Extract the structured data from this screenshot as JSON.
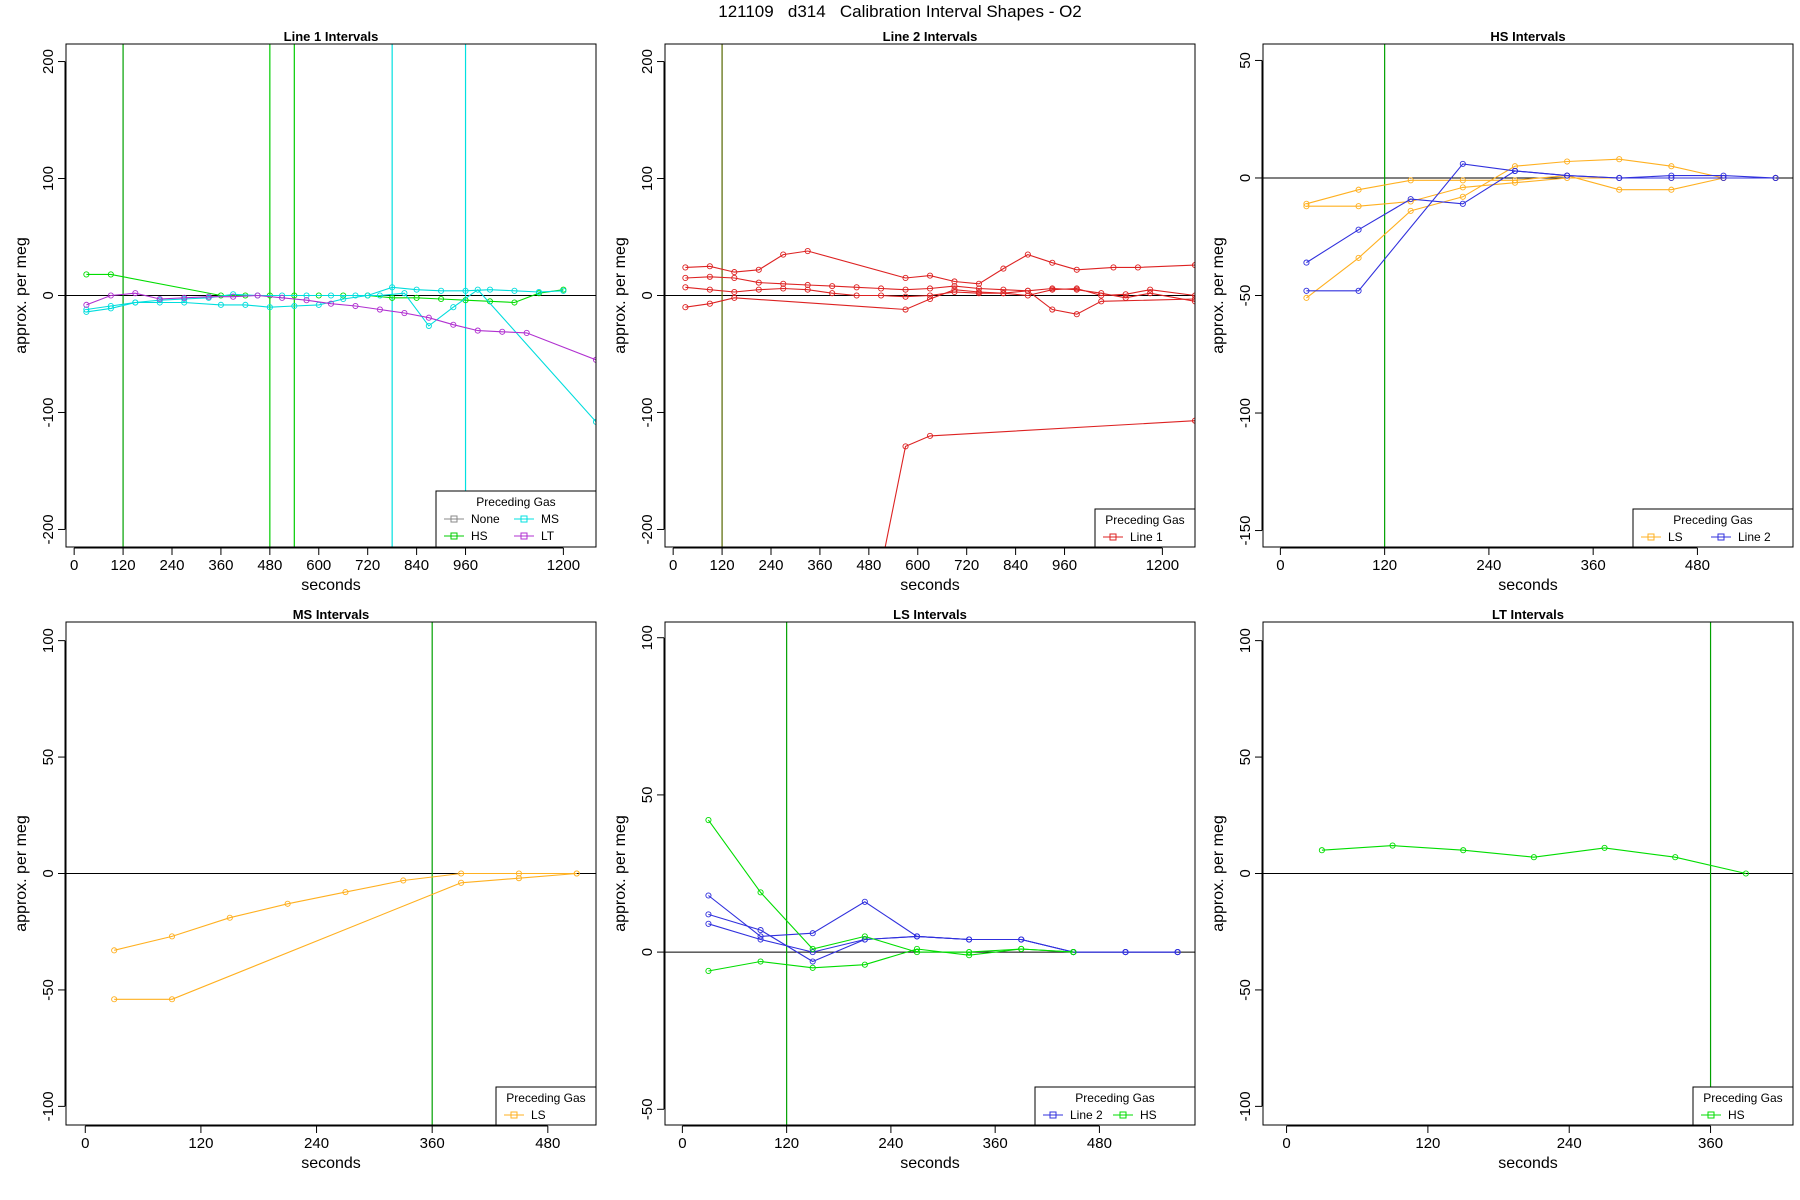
{
  "page": {
    "title": "121109   d314   Calibration Interval Shapes - O2"
  },
  "chart_data": [
    {
      "type": "line",
      "title": "Line 1 Intervals",
      "xlabel": "seconds",
      "ylabel": "approx. per meg",
      "xlim": [
        -20,
        1280
      ],
      "ylim": [
        -215,
        215
      ],
      "xticks": [
        0,
        120,
        240,
        360,
        480,
        600,
        720,
        840,
        960,
        1200
      ],
      "yticks": [
        -200,
        -100,
        0,
        100,
        200
      ],
      "hline": 0,
      "vlines": [
        {
          "x": 120,
          "color": "#00a000"
        },
        {
          "x": 480,
          "color": "#00cc00"
        },
        {
          "x": 540,
          "color": "#00cc00"
        },
        {
          "x": 780,
          "color": "#00e0e0"
        },
        {
          "x": 960,
          "color": "#00e0e0"
        }
      ],
      "legend": {
        "title": "Preceding Gas",
        "position": "bottom-right",
        "entries": [
          {
            "label": "None",
            "color": "#888888"
          },
          {
            "label": "MS",
            "color": "#00e0e0"
          },
          {
            "label": "HS",
            "color": "#00cc00"
          },
          {
            "label": "LT",
            "color": "#b030d0"
          }
        ]
      },
      "series": [
        {
          "color": "#00dd00",
          "x": [
            30,
            90,
            360,
            420,
            480,
            540,
            600,
            660,
            720,
            780,
            840,
            900,
            960,
            1020,
            1080,
            1140,
            1200
          ],
          "values": [
            18,
            18,
            0,
            0,
            0,
            0,
            0,
            0,
            0,
            -2,
            -2,
            -3,
            -4,
            -5,
            -6,
            2,
            5
          ]
        },
        {
          "color": "#00dddd",
          "x": [
            30,
            90,
            150,
            210,
            270,
            360,
            420,
            480,
            540,
            600,
            660,
            720,
            780,
            840,
            900,
            960,
            1020,
            1080,
            1140,
            1200
          ],
          "values": [
            -12,
            -9,
            -6,
            -6,
            -6,
            -8,
            -8,
            -10,
            -9,
            -8,
            -3,
            0,
            7,
            5,
            4,
            4,
            5,
            4,
            3,
            4
          ]
        },
        {
          "color": "#00dddd",
          "x": [
            30,
            90,
            150,
            210,
            270,
            330,
            390,
            450,
            510,
            570,
            630,
            690,
            750,
            810,
            870,
            930,
            990,
            1280
          ],
          "values": [
            -14,
            -11,
            -6,
            -4,
            -3,
            -2,
            1,
            0,
            0,
            0,
            0,
            0,
            0,
            2,
            -26,
            -10,
            5,
            -108
          ]
        },
        {
          "color": "#b030d0",
          "x": [
            30,
            90,
            150,
            210,
            270,
            330,
            390,
            450,
            510,
            570,
            630,
            690,
            750,
            810,
            870,
            930,
            990,
            1050,
            1110,
            1280
          ],
          "values": [
            -8,
            0,
            2,
            -3,
            -2,
            -1,
            -1,
            0,
            -2,
            -4,
            -7,
            -9,
            -12,
            -15,
            -19,
            -25,
            -30,
            -31,
            -32,
            -55
          ]
        }
      ]
    },
    {
      "type": "line",
      "title": "Line 2 Intervals",
      "xlabel": "seconds",
      "ylabel": "approx. per meg",
      "xlim": [
        -20,
        1280
      ],
      "ylim": [
        -215,
        215
      ],
      "xticks": [
        0,
        120,
        240,
        360,
        480,
        600,
        720,
        840,
        960,
        1200
      ],
      "yticks": [
        -200,
        -100,
        0,
        100,
        200
      ],
      "hline": 0,
      "vlines": [
        {
          "x": 120,
          "color": "#556600"
        }
      ],
      "legend": {
        "title": "Preceding Gas",
        "position": "bottom-right",
        "entries": [
          {
            "label": "Line 1",
            "color": "#dd2222"
          }
        ]
      },
      "series": [
        {
          "color": "#dd2222",
          "x": [
            30,
            90,
            150,
            210,
            270,
            330,
            570,
            630,
            690,
            750,
            810,
            870,
            930,
            990,
            1080,
            1140,
            1280
          ],
          "values": [
            24,
            25,
            20,
            22,
            35,
            38,
            15,
            17,
            12,
            10,
            23,
            35,
            28,
            22,
            24,
            24,
            26
          ]
        },
        {
          "color": "#dd2222",
          "x": [
            30,
            90,
            150,
            210,
            270,
            330,
            390,
            450,
            510,
            570,
            630,
            690,
            750,
            810,
            870,
            930,
            990,
            1050,
            1110,
            1170,
            1280
          ],
          "values": [
            15,
            16,
            15,
            11,
            10,
            9,
            8,
            7,
            6,
            5,
            6,
            8,
            6,
            5,
            4,
            6,
            5,
            2,
            -2,
            2,
            -5
          ]
        },
        {
          "color": "#dd2222",
          "x": [
            30,
            90,
            150,
            210,
            270,
            330,
            390,
            450,
            510,
            570,
            630,
            690,
            750,
            810,
            870,
            930,
            990,
            1050,
            1110,
            1170,
            1280
          ],
          "values": [
            7,
            5,
            3,
            5,
            6,
            5,
            2,
            0,
            0,
            -1,
            0,
            3,
            2,
            2,
            0,
            5,
            6,
            0,
            1,
            5,
            0
          ]
        },
        {
          "color": "#dd2222",
          "x": [
            30,
            90,
            150,
            570,
            630,
            690,
            750,
            810,
            870,
            930,
            990,
            1050,
            1280
          ],
          "values": [
            -10,
            -7,
            -2,
            -12,
            -3,
            5,
            3,
            2,
            4,
            -12,
            -16,
            -5,
            -3
          ]
        },
        {
          "color": "#dd2222",
          "x": [
            520,
            570,
            630,
            1280
          ],
          "values": [
            -215,
            -129,
            -120,
            -107
          ]
        }
      ]
    },
    {
      "type": "line",
      "title": "HS Intervals",
      "xlabel": "seconds",
      "ylabel": "approx. per meg",
      "xlim": [
        -20,
        590
      ],
      "ylim": [
        -157,
        57
      ],
      "xticks": [
        0,
        120,
        240,
        360,
        480
      ],
      "yticks": [
        -150,
        -100,
        -50,
        0,
        50
      ],
      "hline": 0,
      "vlines": [
        {
          "x": 120,
          "color": "#00a000"
        }
      ],
      "legend": {
        "title": "Preceding Gas",
        "position": "bottom-right",
        "entries": [
          {
            "label": "LS",
            "color": "#ffb020"
          },
          {
            "label": "Line 2",
            "color": "#3030dd"
          }
        ]
      },
      "series": [
        {
          "color": "#ffb020",
          "x": [
            30,
            90,
            150,
            210,
            270,
            330,
            390,
            450,
            510,
            570
          ],
          "values": [
            -11,
            -5,
            -1,
            -1,
            -1,
            1,
            -5,
            -5,
            0,
            0
          ]
        },
        {
          "color": "#ffb020",
          "x": [
            30,
            90,
            150,
            210,
            270,
            330,
            390,
            450,
            510,
            570
          ],
          "values": [
            -12,
            -12,
            -10,
            -4,
            -2,
            0,
            0,
            0,
            0,
            0
          ]
        },
        {
          "color": "#ffb020",
          "x": [
            30,
            90,
            150,
            210,
            270,
            330,
            390,
            450,
            510,
            570
          ],
          "values": [
            -51,
            -34,
            -14,
            -8,
            5,
            7,
            8,
            5,
            0,
            0
          ]
        },
        {
          "color": "#3030dd",
          "x": [
            30,
            90,
            150,
            210,
            270,
            330,
            390,
            450,
            510,
            570
          ],
          "values": [
            -36,
            -22,
            -9,
            -11,
            3,
            1,
            0,
            1,
            1,
            0
          ]
        },
        {
          "color": "#3030dd",
          "x": [
            30,
            90,
            210,
            270,
            330,
            390,
            450,
            510,
            570
          ],
          "values": [
            -48,
            -48,
            6,
            3,
            1,
            0,
            0,
            0,
            0
          ]
        }
      ]
    },
    {
      "type": "line",
      "title": "MS Intervals",
      "xlabel": "seconds",
      "ylabel": "approx. per meg",
      "xlim": [
        -20,
        530
      ],
      "ylim": [
        -108,
        108
      ],
      "xticks": [
        0,
        120,
        240,
        360,
        480
      ],
      "yticks": [
        -100,
        -50,
        0,
        50,
        100
      ],
      "hline": 0,
      "vlines": [
        {
          "x": 360,
          "color": "#00a000"
        }
      ],
      "legend": {
        "title": "Preceding Gas",
        "position": "bottom-right",
        "entries": [
          {
            "label": "LS",
            "color": "#ffb020"
          }
        ]
      },
      "series": [
        {
          "color": "#ffb020",
          "x": [
            30,
            90,
            150,
            210,
            270,
            330,
            390,
            450,
            510
          ],
          "values": [
            -33,
            -27,
            -19,
            -13,
            -8,
            -3,
            0,
            0,
            0
          ]
        },
        {
          "color": "#ffb020",
          "x": [
            30,
            90,
            390,
            450,
            510
          ],
          "values": [
            -54,
            -54,
            -4,
            -2,
            0
          ]
        }
      ]
    },
    {
      "type": "line",
      "title": "LS Intervals",
      "xlabel": "seconds",
      "ylabel": "approx. per meg",
      "xlim": [
        -20,
        590
      ],
      "ylim": [
        -55,
        105
      ],
      "xticks": [
        0,
        120,
        240,
        360,
        480
      ],
      "yticks": [
        -50,
        0,
        50,
        100
      ],
      "hline": 0,
      "vlines": [
        {
          "x": 120,
          "color": "#00a000"
        }
      ],
      "legend": {
        "title": "Preceding Gas",
        "position": "bottom-right",
        "entries": [
          {
            "label": "Line 2",
            "color": "#3030dd"
          },
          {
            "label": "HS",
            "color": "#00dd00"
          }
        ]
      },
      "series": [
        {
          "color": "#3030dd",
          "x": [
            30,
            90,
            150,
            210,
            270,
            330,
            390,
            450,
            510,
            570
          ],
          "values": [
            18,
            5,
            6,
            16,
            5,
            4,
            4,
            0,
            0,
            0
          ]
        },
        {
          "color": "#3030dd",
          "x": [
            30,
            90,
            150,
            210,
            270,
            330,
            390,
            450,
            510,
            570
          ],
          "values": [
            12,
            7,
            -3,
            4,
            5,
            4,
            4,
            0,
            0,
            0
          ]
        },
        {
          "color": "#3030dd",
          "x": [
            30,
            90,
            150,
            210,
            270,
            330,
            390,
            450,
            510,
            570
          ],
          "values": [
            9,
            4,
            0,
            4,
            5,
            4,
            4,
            0,
            0,
            0
          ]
        },
        {
          "color": "#00dd00",
          "x": [
            30,
            90,
            150,
            210,
            270,
            330,
            390,
            450
          ],
          "values": [
            42,
            19,
            1,
            5,
            0,
            0,
            1,
            0
          ]
        },
        {
          "color": "#00dd00",
          "x": [
            30,
            90,
            150,
            210,
            270,
            330,
            390,
            450
          ],
          "values": [
            -6,
            -3,
            -5,
            -4,
            1,
            -1,
            1,
            0
          ]
        }
      ]
    },
    {
      "type": "line",
      "title": "LT Intervals",
      "xlabel": "seconds",
      "ylabel": "approx. per meg",
      "xlim": [
        -20,
        430
      ],
      "ylim": [
        -108,
        108
      ],
      "xticks": [
        0,
        120,
        240,
        360
      ],
      "yticks": [
        -100,
        -50,
        0,
        50,
        100
      ],
      "hline": 0,
      "vlines": [
        {
          "x": 360,
          "color": "#00a000"
        }
      ],
      "legend": {
        "title": "Preceding Gas",
        "position": "bottom-right",
        "entries": [
          {
            "label": "HS",
            "color": "#00dd00"
          }
        ]
      },
      "series": [
        {
          "color": "#00dd00",
          "x": [
            30,
            90,
            150,
            210,
            270,
            330,
            390
          ],
          "values": [
            10,
            12,
            10,
            7,
            11,
            7,
            0
          ]
        }
      ]
    }
  ]
}
